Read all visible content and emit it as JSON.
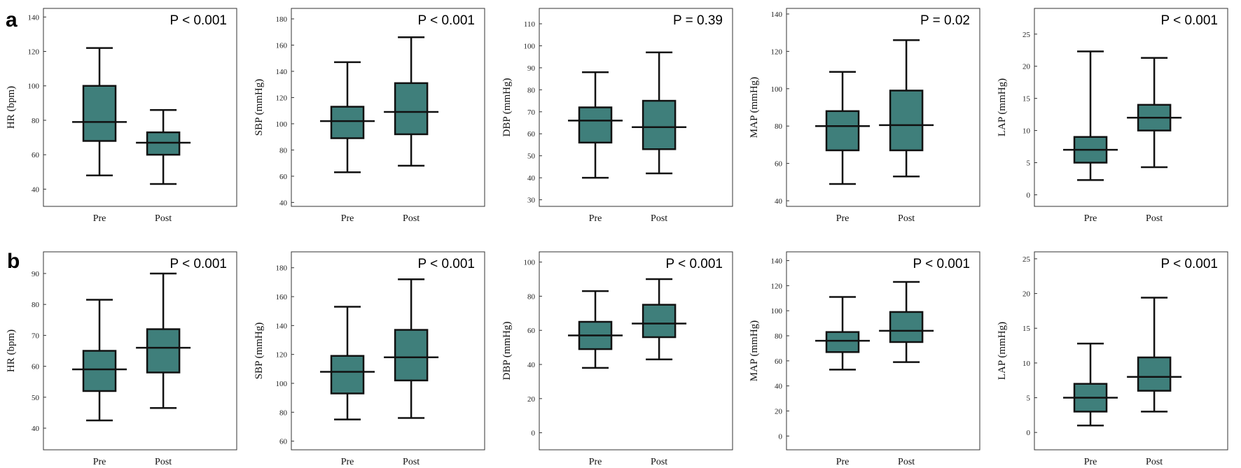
{
  "panel_labels": [
    "a",
    "b"
  ],
  "box_color": "#3f7f7b",
  "chart_data": [
    {
      "type": "box",
      "ylabel": "HR (bpm)",
      "pvalue": "P < 0.001",
      "categories": [
        "Pre",
        "Post"
      ],
      "ylim": [
        30,
        145
      ],
      "yticks": [
        40,
        60,
        80,
        100,
        120,
        140
      ],
      "boxes": [
        {
          "min": 48,
          "q1": 68,
          "median": 79,
          "q3": 100,
          "max": 122
        },
        {
          "min": 43,
          "q1": 60,
          "median": 67,
          "q3": 73,
          "max": 86
        }
      ]
    },
    {
      "type": "box",
      "ylabel": "SBP (mmHg)",
      "pvalue": "P < 0.001",
      "categories": [
        "Pre",
        "Post"
      ],
      "ylim": [
        37,
        188
      ],
      "yticks": [
        40,
        60,
        80,
        100,
        120,
        140,
        160,
        180
      ],
      "boxes": [
        {
          "min": 63,
          "q1": 89,
          "median": 102,
          "q3": 113,
          "max": 147
        },
        {
          "min": 68,
          "q1": 92,
          "median": 109,
          "q3": 131,
          "max": 166
        }
      ]
    },
    {
      "type": "box",
      "ylabel": "DBP (mmHg)",
      "pvalue": "P = 0.39",
      "categories": [
        "Pre",
        "Post"
      ],
      "ylim": [
        27,
        117
      ],
      "yticks": [
        30,
        40,
        50,
        60,
        70,
        80,
        90,
        100,
        110
      ],
      "boxes": [
        {
          "min": 40,
          "q1": 56,
          "median": 66,
          "q3": 72,
          "max": 88
        },
        {
          "min": 42,
          "q1": 53,
          "median": 63,
          "q3": 75,
          "max": 97
        }
      ]
    },
    {
      "type": "box",
      "ylabel": "MAP (mmHg)",
      "pvalue": "P = 0.02",
      "categories": [
        "Pre",
        "Post"
      ],
      "ylim": [
        37,
        143
      ],
      "yticks": [
        40,
        60,
        80,
        100,
        120,
        140
      ],
      "boxes": [
        {
          "min": 49,
          "q1": 67,
          "median": 80,
          "q3": 88,
          "max": 109
        },
        {
          "min": 53,
          "q1": 67,
          "median": 80.5,
          "q3": 99,
          "max": 126
        }
      ]
    },
    {
      "type": "box",
      "ylabel": "LAP (mmHg)",
      "pvalue": "P < 0.001",
      "categories": [
        "Pre",
        "Post"
      ],
      "ylim": [
        -1.8,
        29
      ],
      "yticks": [
        0,
        5,
        10,
        15,
        20,
        25
      ],
      "boxes": [
        {
          "min": 2.3,
          "q1": 5,
          "median": 7,
          "q3": 9,
          "max": 22.3
        },
        {
          "min": 4.3,
          "q1": 10,
          "median": 12,
          "q3": 14,
          "max": 21.3
        }
      ]
    },
    {
      "type": "box",
      "ylabel": "HR (bpm)",
      "pvalue": "P < 0.001",
      "categories": [
        "Pre",
        "Post"
      ],
      "ylim": [
        33,
        97
      ],
      "yticks": [
        40,
        50,
        60,
        70,
        80,
        90
      ],
      "boxes": [
        {
          "min": 42.5,
          "q1": 52,
          "median": 59,
          "q3": 65,
          "max": 81.5
        },
        {
          "min": 46.5,
          "q1": 58,
          "median": 66,
          "q3": 72,
          "max": 90
        }
      ]
    },
    {
      "type": "box",
      "ylabel": "SBP (mmHg)",
      "pvalue": "P < 0.001",
      "categories": [
        "Pre",
        "Post"
      ],
      "ylim": [
        54,
        191
      ],
      "yticks": [
        60,
        80,
        100,
        120,
        140,
        160,
        180
      ],
      "boxes": [
        {
          "min": 75,
          "q1": 93,
          "median": 108,
          "q3": 119,
          "max": 153
        },
        {
          "min": 76,
          "q1": 102,
          "median": 118,
          "q3": 137,
          "max": 172
        }
      ]
    },
    {
      "type": "box",
      "ylabel": "DBP (mmHg)",
      "pvalue": "P < 0.001",
      "categories": [
        "Pre",
        "Post"
      ],
      "ylim": [
        -10,
        106
      ],
      "yticks": [
        0,
        20,
        40,
        60,
        80,
        100
      ],
      "boxes": [
        {
          "min": 38,
          "q1": 49,
          "median": 57,
          "q3": 65,
          "max": 83
        },
        {
          "min": 43,
          "q1": 56,
          "median": 64,
          "q3": 75,
          "max": 90
        }
      ]
    },
    {
      "type": "box",
      "ylabel": "MAP (mmHg)",
      "pvalue": "P < 0.001",
      "categories": [
        "Pre",
        "Post"
      ],
      "ylim": [
        -11,
        147
      ],
      "yticks": [
        0,
        20,
        40,
        60,
        80,
        100,
        120,
        140
      ],
      "boxes": [
        {
          "min": 53,
          "q1": 67,
          "median": 76,
          "q3": 83,
          "max": 111
        },
        {
          "min": 59,
          "q1": 75,
          "median": 84,
          "q3": 99,
          "max": 123
        }
      ]
    },
    {
      "type": "box",
      "ylabel": "LAP (mmHg)",
      "pvalue": "P < 0.001",
      "categories": [
        "Pre",
        "Post"
      ],
      "ylim": [
        -2.5,
        26
      ],
      "yticks": [
        0,
        5,
        10,
        15,
        20,
        25
      ],
      "boxes": [
        {
          "min": 1,
          "q1": 3,
          "median": 5,
          "q3": 7,
          "max": 12.8
        },
        {
          "min": 3,
          "q1": 6,
          "median": 8,
          "q3": 10.8,
          "max": 19.4
        }
      ]
    }
  ]
}
